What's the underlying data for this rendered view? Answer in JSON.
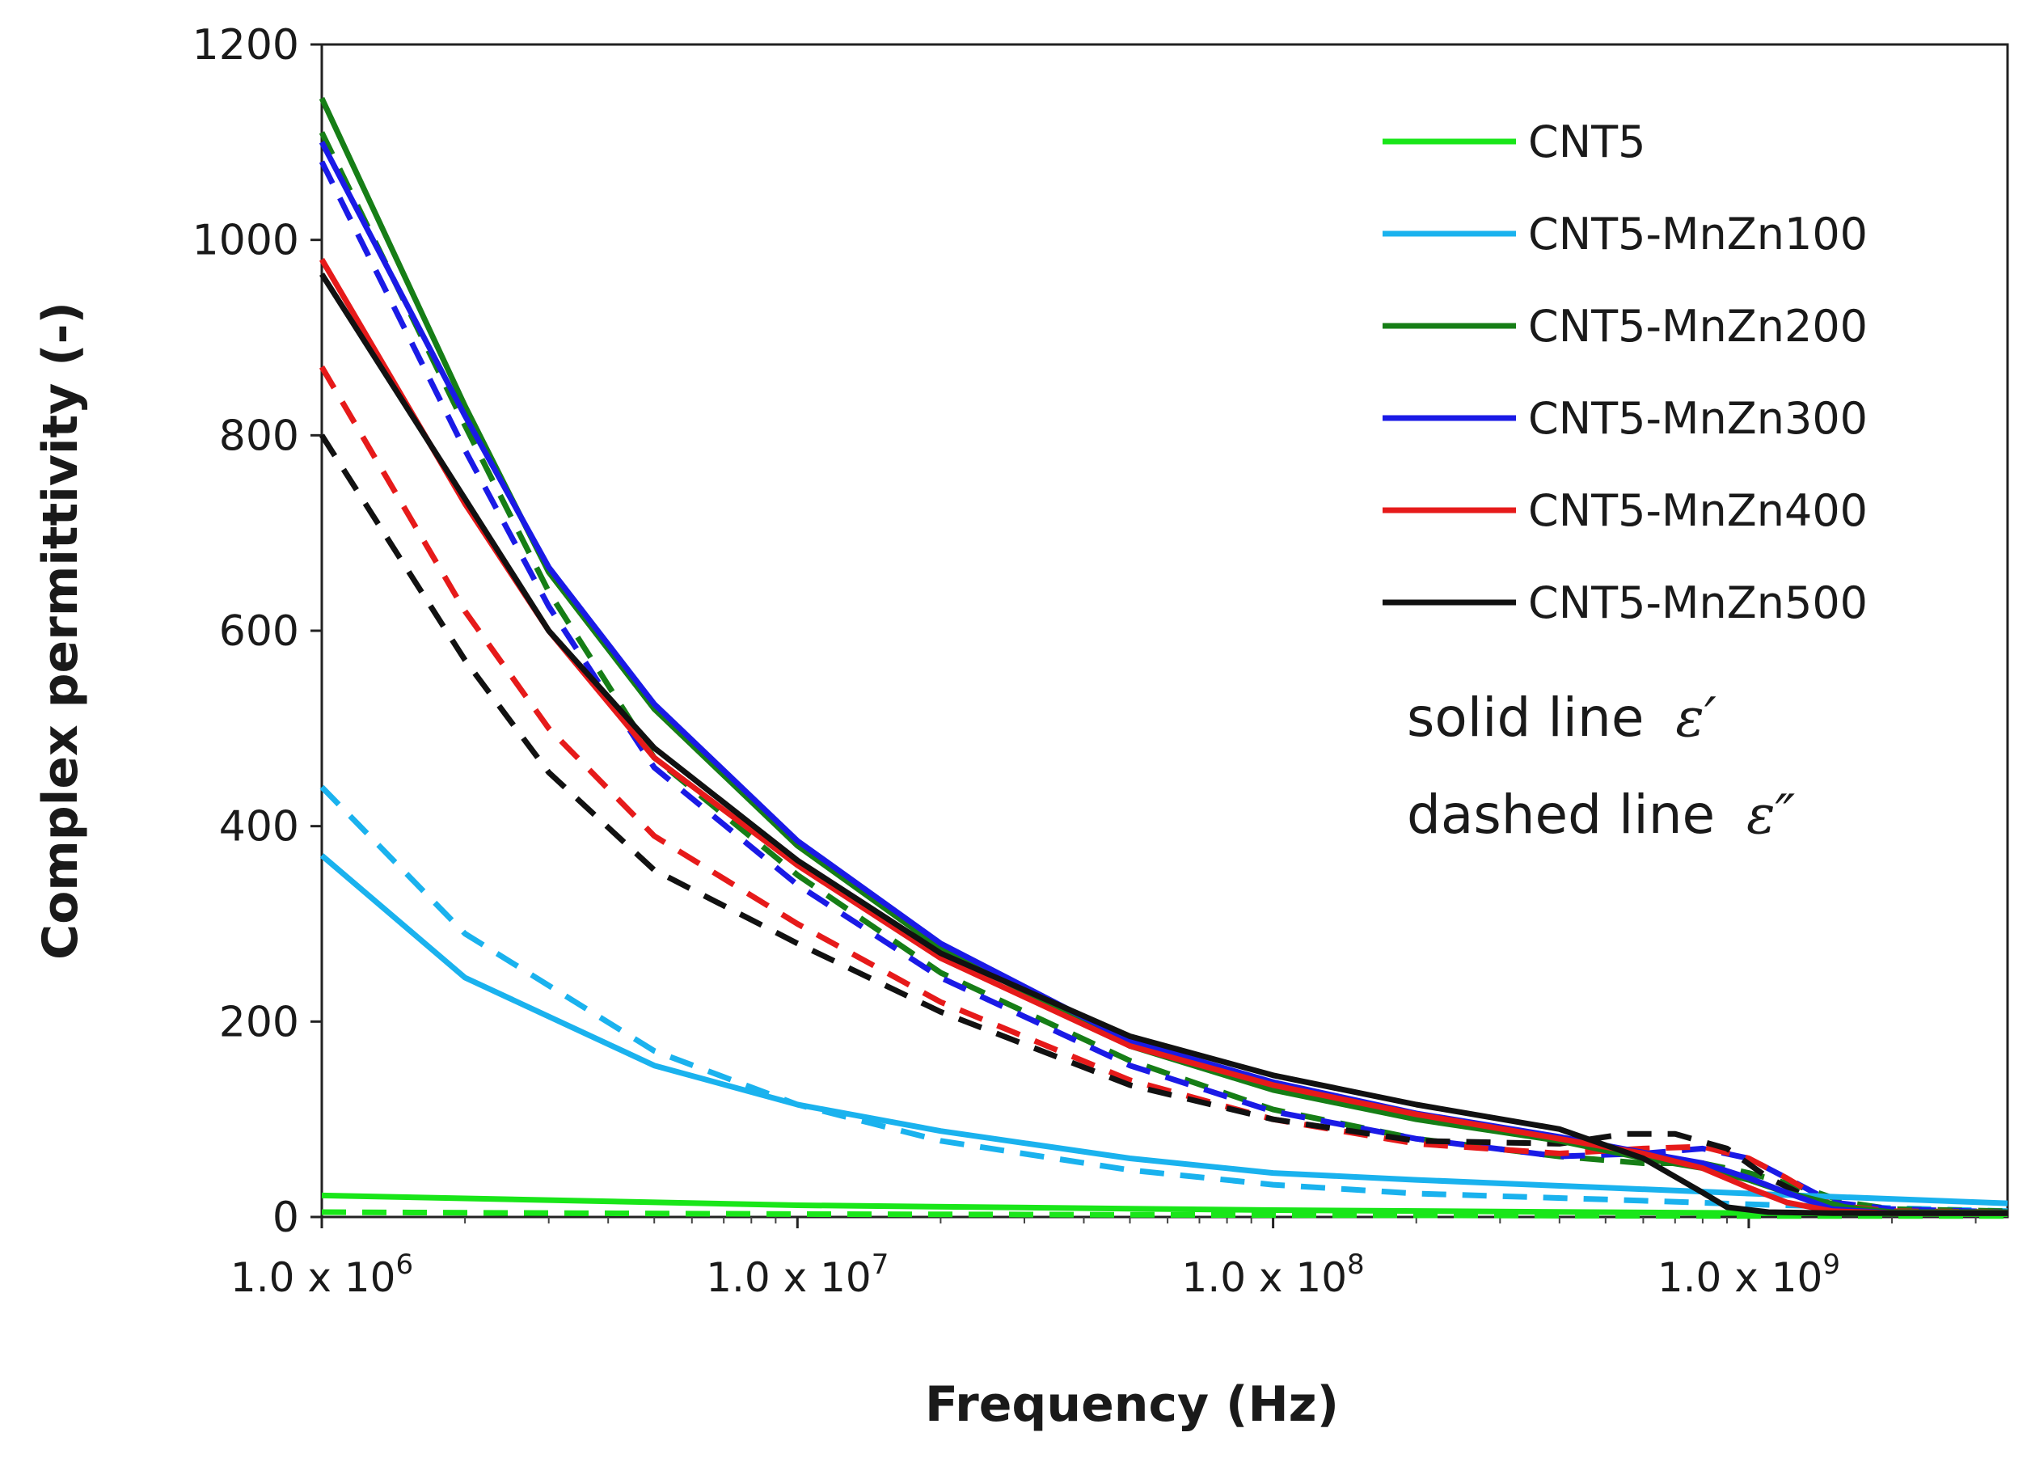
{
  "chart_data": {
    "type": "line",
    "title": "",
    "xlabel": "Frequency (Hz)",
    "ylabel": "Complex permittivity (-)",
    "x_scale": "log",
    "xlim": [
      1000000,
      3500000000
    ],
    "ylim": [
      0,
      1200
    ],
    "y_ticks": [
      0,
      200,
      400,
      600,
      800,
      1000,
      1200
    ],
    "x_ticks": [
      {
        "mantissa": "1.0 x 10",
        "exp": "6"
      },
      {
        "mantissa": "1.0 x 10",
        "exp": "7"
      },
      {
        "mantissa": "1.0 x 10",
        "exp": "8"
      },
      {
        "mantissa": "1.0 x 10",
        "exp": "9"
      }
    ],
    "legend_position": "top-right",
    "annotation": {
      "line1": "solid line",
      "sym1": "ε′",
      "line2": "dashed line",
      "sym2": "ε″"
    },
    "series": [
      {
        "name": "CNT5",
        "color": "#19e619",
        "solid_x": [
          1000000.0,
          10000000.0,
          100000000.0,
          1000000000.0,
          3500000000.0
        ],
        "solid_y": [
          22,
          12,
          7,
          4,
          3
        ],
        "dashed_x": [
          1000000.0,
          10000000.0,
          100000000.0,
          1000000000.0,
          3500000000.0
        ],
        "dashed_y": [
          5,
          3,
          2,
          1,
          1
        ]
      },
      {
        "name": "CNT5-MnZn100",
        "color": "#1ab2ee",
        "solid_x": [
          1000000.0,
          2000000.0,
          5000000.0,
          10000000.0,
          20000000.0,
          50000000.0,
          100000000.0,
          200000000.0,
          500000000.0,
          1000000000.0,
          3500000000.0
        ],
        "solid_y": [
          370,
          245,
          155,
          115,
          88,
          60,
          45,
          38,
          30,
          24,
          14
        ],
        "dashed_x": [
          1000000.0,
          2000000.0,
          5000000.0,
          10000000.0,
          20000000.0,
          50000000.0,
          100000000.0,
          200000000.0,
          500000000.0,
          1000000000.0,
          3500000000.0
        ],
        "dashed_y": [
          440,
          290,
          170,
          115,
          78,
          48,
          33,
          24,
          18,
          13,
          6
        ]
      },
      {
        "name": "CNT5-MnZn200",
        "color": "#167e16",
        "solid_x": [
          1000000.0,
          2000000.0,
          3000000.0,
          5000000.0,
          10000000.0,
          20000000.0,
          50000000.0,
          100000000.0,
          200000000.0,
          400000000.0,
          600000000.0,
          800000000.0,
          1000000000.0,
          1200000000.0,
          1600000000.0,
          2000000000.0,
          3500000000.0
        ],
        "solid_y": [
          1145,
          830,
          660,
          520,
          380,
          275,
          175,
          130,
          100,
          78,
          60,
          50,
          38,
          25,
          10,
          5,
          5
        ],
        "dashed_x": [
          1000000.0,
          2000000.0,
          3000000.0,
          5000000.0,
          10000000.0,
          20000000.0,
          50000000.0,
          100000000.0,
          200000000.0,
          400000000.0,
          600000000.0,
          800000000.0,
          1000000000.0,
          1300000000.0,
          1600000000.0,
          2000000000.0,
          3500000000.0
        ],
        "dashed_y": [
          1110,
          810,
          640,
          470,
          350,
          250,
          160,
          110,
          80,
          62,
          55,
          55,
          45,
          30,
          15,
          8,
          6
        ]
      },
      {
        "name": "CNT5-MnZn300",
        "color": "#1a1ae6",
        "solid_x": [
          1000000.0,
          2000000.0,
          3000000.0,
          5000000.0,
          10000000.0,
          20000000.0,
          50000000.0,
          100000000.0,
          200000000.0,
          400000000.0,
          600000000.0,
          800000000.0,
          1000000000.0,
          1200000000.0,
          1500000000.0,
          2000000000.0,
          3500000000.0
        ],
        "solid_y": [
          1100,
          820,
          665,
          525,
          385,
          280,
          180,
          138,
          106,
          82,
          66,
          55,
          40,
          25,
          8,
          4,
          4
        ],
        "dashed_x": [
          1000000.0,
          2000000.0,
          3000000.0,
          5000000.0,
          10000000.0,
          20000000.0,
          50000000.0,
          100000000.0,
          200000000.0,
          400000000.0,
          600000000.0,
          800000000.0,
          1000000000.0,
          1200000000.0,
          1500000000.0,
          2000000000.0,
          3500000000.0
        ],
        "dashed_y": [
          1080,
          785,
          625,
          460,
          340,
          245,
          155,
          108,
          80,
          62,
          65,
          70,
          60,
          40,
          15,
          8,
          5
        ]
      },
      {
        "name": "CNT5-MnZn400",
        "color": "#e61a1a",
        "solid_x": [
          1000000.0,
          2000000.0,
          3000000.0,
          5000000.0,
          10000000.0,
          20000000.0,
          50000000.0,
          100000000.0,
          200000000.0,
          400000000.0,
          600000000.0,
          800000000.0,
          1000000000.0,
          1200000000.0,
          1500000000.0,
          2000000000.0,
          3500000000.0
        ],
        "solid_y": [
          980,
          730,
          600,
          470,
          360,
          265,
          175,
          135,
          105,
          80,
          65,
          50,
          30,
          15,
          6,
          4,
          4
        ],
        "dashed_x": [
          1000000.0,
          2000000.0,
          3000000.0,
          5000000.0,
          10000000.0,
          20000000.0,
          50000000.0,
          100000000.0,
          200000000.0,
          400000000.0,
          600000000.0,
          800000000.0,
          1000000000.0,
          1200000000.0,
          1500000000.0,
          2000000000.0,
          3500000000.0
        ],
        "dashed_y": [
          870,
          620,
          500,
          390,
          300,
          220,
          140,
          100,
          75,
          65,
          70,
          72,
          60,
          40,
          12,
          6,
          5
        ]
      },
      {
        "name": "CNT5-MnZn500",
        "color": "#111111",
        "solid_x": [
          1000000.0,
          2000000.0,
          3000000.0,
          5000000.0,
          10000000.0,
          20000000.0,
          50000000.0,
          100000000.0,
          200000000.0,
          400000000.0,
          600000000.0,
          800000000.0,
          900000000.0,
          1100000000.0,
          1500000000.0,
          3500000000.0
        ],
        "solid_y": [
          965,
          735,
          600,
          480,
          365,
          270,
          185,
          145,
          115,
          90,
          60,
          25,
          10,
          5,
          4,
          4
        ],
        "dashed_x": [
          1000000.0,
          2000000.0,
          3000000.0,
          5000000.0,
          10000000.0,
          20000000.0,
          50000000.0,
          100000000.0,
          200000000.0,
          400000000.0,
          550000000.0,
          700000000.0,
          900000000.0,
          1100000000.0,
          1500000000.0,
          2000000000.0,
          3500000000.0
        ],
        "dashed_y": [
          800,
          570,
          455,
          355,
          280,
          210,
          135,
          100,
          78,
          75,
          85,
          85,
          70,
          40,
          8,
          5,
          5
        ]
      }
    ]
  }
}
